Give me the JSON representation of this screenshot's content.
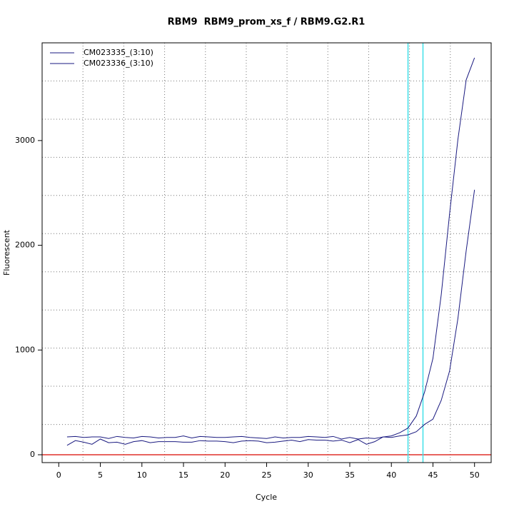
{
  "chart_data": {
    "type": "line",
    "title": "RBM9  RBM9_prom_xs_f / RBM9.G2.R1",
    "x_label": "Cycle",
    "y_label": "Fluorescent",
    "x": [
      1,
      2,
      3,
      4,
      5,
      6,
      7,
      8,
      9,
      10,
      11,
      12,
      13,
      14,
      15,
      16,
      17,
      18,
      19,
      20,
      21,
      22,
      23,
      24,
      25,
      26,
      27,
      28,
      29,
      30,
      31,
      32,
      33,
      34,
      35,
      36,
      37,
      38,
      39,
      40,
      41,
      42,
      43,
      44,
      45,
      46,
      47,
      48,
      49,
      50
    ],
    "series": [
      {
        "name": "CM023335_(3:10)",
        "color": "#1a1a80",
        "values": [
          170,
          175,
          165,
          170,
          170,
          155,
          175,
          165,
          160,
          175,
          170,
          160,
          165,
          165,
          180,
          160,
          175,
          170,
          165,
          165,
          170,
          175,
          165,
          160,
          155,
          170,
          160,
          165,
          165,
          175,
          170,
          165,
          175,
          150,
          165,
          150,
          160,
          155,
          170,
          180,
          210,
          255,
          370,
          600,
          920,
          1530,
          2300,
          3010,
          3580,
          3790
        ]
      },
      {
        "name": "CM023336_(3:10)",
        "color": "#1a1a80",
        "values": [
          90,
          135,
          120,
          100,
          150,
          115,
          120,
          100,
          125,
          135,
          115,
          125,
          125,
          125,
          120,
          120,
          135,
          130,
          130,
          125,
          115,
          130,
          135,
          130,
          115,
          120,
          130,
          140,
          125,
          145,
          140,
          140,
          130,
          140,
          115,
          145,
          100,
          125,
          170,
          165,
          180,
          190,
          220,
          290,
          340,
          520,
          800,
          1300,
          1950,
          2530
        ]
      }
    ],
    "xlim": [
      -2,
      52
    ],
    "ylim": [
      -75,
      3933
    ],
    "xticks": [
      0,
      5,
      10,
      15,
      20,
      25,
      30,
      35,
      40,
      45,
      50
    ],
    "yticks": [
      0,
      1000,
      2000,
      3000
    ],
    "grid": true,
    "xgrid": [
      2.91,
      7.82,
      12.73,
      17.64,
      22.55,
      27.45,
      32.36,
      37.27,
      42.18,
      47.09
    ],
    "ygrid": [
      289,
      654,
      1018,
      1382,
      1747,
      2111,
      2476,
      2840,
      3204,
      3569
    ],
    "threshold_lines": {
      "x": [
        42.0,
        43.8
      ],
      "color": "#40e0e8"
    },
    "baseline": {
      "y": 0,
      "color": "#e0302a"
    },
    "legend": "topleft"
  }
}
